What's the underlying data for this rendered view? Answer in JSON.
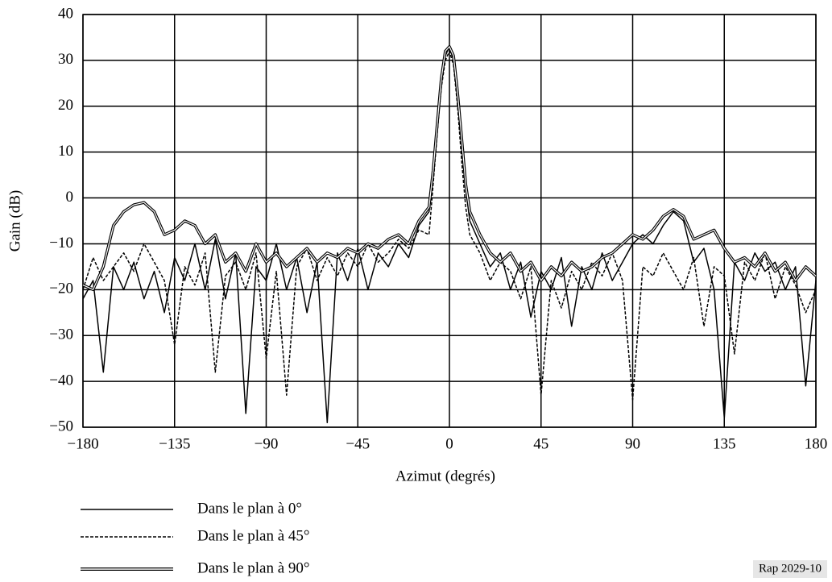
{
  "chart_data": {
    "type": "line",
    "xlabel": "Azimut (degrés)",
    "ylabel": "Gain (dB)",
    "note": "Rap 2029-10",
    "xlim": [
      -180,
      180
    ],
    "ylim": [
      -50,
      40
    ],
    "grid": true,
    "xticks": [
      {
        "value": -180,
        "label": "−180"
      },
      {
        "value": -135,
        "label": "−135"
      },
      {
        "value": -90,
        "label": "−90"
      },
      {
        "value": -45,
        "label": "−45"
      },
      0,
      45,
      90,
      135,
      180
    ],
    "yticks": [
      {
        "value": -50,
        "label": "−50"
      },
      {
        "value": -40,
        "label": "−40"
      },
      {
        "value": -30,
        "label": "−30"
      },
      {
        "value": -20,
        "label": "−20"
      },
      {
        "value": -10,
        "label": "−10"
      },
      0,
      10,
      20,
      30,
      40
    ],
    "x": [
      -180,
      -175,
      -170,
      -165,
      -160,
      -155,
      -150,
      -145,
      -140,
      -135,
      -130,
      -125,
      -120,
      -115,
      -110,
      -105,
      -100,
      -95,
      -90,
      -85,
      -80,
      -75,
      -70,
      -65,
      -60,
      -55,
      -50,
      -45,
      -40,
      -35,
      -30,
      -25,
      -20,
      -15,
      -10,
      -8,
      -6,
      -4,
      -2,
      0,
      2,
      4,
      6,
      8,
      10,
      15,
      20,
      25,
      30,
      35,
      40,
      45,
      50,
      55,
      60,
      65,
      70,
      75,
      80,
      85,
      90,
      95,
      100,
      105,
      110,
      115,
      120,
      125,
      130,
      135,
      140,
      145,
      150,
      155,
      160,
      165,
      170,
      175,
      180
    ],
    "series": [
      {
        "name": "Dans le plan à 0°",
        "color": "#000000",
        "style": "solid",
        "values": [
          -22,
          -18,
          -38,
          -15,
          -20,
          -14,
          -22,
          -16,
          -25,
          -13,
          -18,
          -10,
          -20,
          -9,
          -22,
          -12,
          -47,
          -15,
          -18,
          -10,
          -20,
          -13,
          -25,
          -14,
          -49,
          -12,
          -18,
          -11,
          -20,
          -12,
          -15,
          -10,
          -13,
          -6,
          -3,
          5,
          15,
          25,
          31,
          33,
          30,
          22,
          12,
          2,
          -5,
          -10,
          -15,
          -12,
          -20,
          -14,
          -26,
          -16,
          -20,
          -13,
          -28,
          -15,
          -20,
          -12,
          -18,
          -14,
          -10,
          -8,
          -10,
          -6,
          -3,
          -5,
          -14,
          -11,
          -20,
          -48,
          -14,
          -18,
          -12,
          -16,
          -14,
          -20,
          -15,
          -41,
          -18
        ]
      },
      {
        "name": "Dans le plan à 45°",
        "color": "#000000",
        "style": "dashed",
        "values": [
          -20,
          -13,
          -18,
          -15,
          -12,
          -16,
          -10,
          -14,
          -18,
          -32,
          -15,
          -19,
          -12,
          -38,
          -17,
          -14,
          -20,
          -12,
          -35,
          -16,
          -43,
          -15,
          -11,
          -18,
          -13,
          -17,
          -12,
          -15,
          -10,
          -14,
          -12,
          -9,
          -11,
          -7,
          -8,
          3,
          14,
          24,
          30,
          32,
          29,
          20,
          8,
          -2,
          -8,
          -12,
          -18,
          -14,
          -16,
          -22,
          -15,
          -43,
          -18,
          -24,
          -16,
          -20,
          -14,
          -17,
          -12,
          -18,
          -44,
          -15,
          -17,
          -12,
          -16,
          -20,
          -13,
          -28,
          -15,
          -17,
          -34,
          -14,
          -18,
          -12,
          -22,
          -15,
          -19,
          -25,
          -20
        ]
      },
      {
        "name": "Dans le plan à 90°",
        "color": "#000000",
        "style": "double",
        "values": [
          -19,
          -20,
          -15,
          -6,
          -3,
          -1.5,
          -1,
          -3,
          -8,
          -7,
          -5,
          -6,
          -10,
          -8,
          -14,
          -12,
          -16,
          -10,
          -14,
          -12,
          -15,
          -13,
          -11,
          -14,
          -12,
          -13,
          -11,
          -12,
          -10,
          -11,
          -9,
          -8,
          -10,
          -5,
          -2,
          6,
          16,
          26,
          32,
          33,
          31,
          23,
          13,
          3,
          -3,
          -8,
          -12,
          -14,
          -12,
          -16,
          -14,
          -18,
          -15,
          -17,
          -14,
          -16,
          -15,
          -13,
          -12,
          -10,
          -8,
          -9,
          -7,
          -4,
          -2.5,
          -4,
          -9,
          -8,
          -7,
          -11,
          -14,
          -13,
          -15,
          -12,
          -16,
          -14,
          -18,
          -15,
          -17
        ]
      }
    ]
  }
}
